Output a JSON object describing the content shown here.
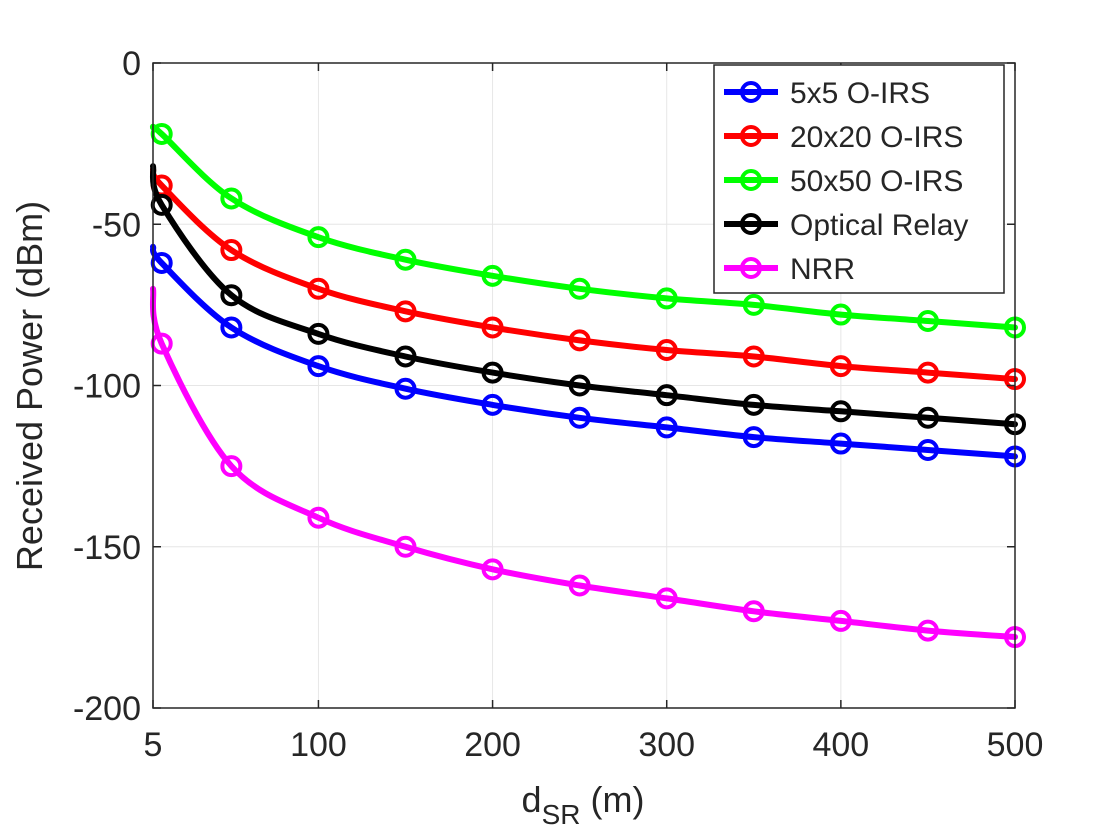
{
  "chart_data": {
    "type": "line",
    "xlabel_main": "d",
    "xlabel_sub": "SR",
    "xlabel_unit": " (m)",
    "ylabel": "Received Power (dBm)",
    "xlim": [
      5,
      500
    ],
    "ylim": [
      -200,
      0
    ],
    "grid": true,
    "legend_position": "top-right",
    "x_ticks": [
      5,
      100,
      200,
      300,
      400,
      500
    ],
    "x_tick_labels": [
      "5",
      "100",
      "200",
      "300",
      "400",
      "500"
    ],
    "y_ticks": [
      0,
      -50,
      -100,
      -150,
      -200
    ],
    "y_tick_labels": [
      "0",
      "-50",
      "-100",
      "-150",
      "-200"
    ],
    "marker_x": [
      10,
      50,
      100,
      150,
      200,
      250,
      300,
      350,
      400,
      450,
      500
    ],
    "series": [
      {
        "name": "5x5 O-IRS",
        "color": "#0000ff",
        "line_start": [
          5,
          -57
        ],
        "values": [
          -62,
          -82,
          -94,
          -101,
          -106,
          -110,
          -113,
          -116,
          -118,
          -120,
          -122
        ]
      },
      {
        "name": "20x20 O-IRS",
        "color": "#ff0000",
        "line_start": [
          5,
          -33
        ],
        "values": [
          -38,
          -58,
          -70,
          -77,
          -82,
          -86,
          -89,
          -91,
          -94,
          -96,
          -98
        ]
      },
      {
        "name": "50x50 O-IRS",
        "color": "#00ff00",
        "line_start": [
          5,
          -20
        ],
        "values": [
          -22,
          -42,
          -54,
          -61,
          -66,
          -70,
          -73,
          -75,
          -78,
          -80,
          -82
        ]
      },
      {
        "name": "Optical Relay",
        "color": "#000000",
        "line_start": [
          5,
          -32
        ],
        "values": [
          -44,
          -72,
          -84,
          -91,
          -96,
          -100,
          -103,
          -106,
          -108,
          -110,
          -112
        ]
      },
      {
        "name": "NRR",
        "color": "#ff00ff",
        "line_start": [
          5,
          -70
        ],
        "values": [
          -87,
          -125,
          -141,
          -150,
          -157,
          -162,
          -166,
          -170,
          -173,
          -176,
          -178
        ]
      }
    ]
  }
}
